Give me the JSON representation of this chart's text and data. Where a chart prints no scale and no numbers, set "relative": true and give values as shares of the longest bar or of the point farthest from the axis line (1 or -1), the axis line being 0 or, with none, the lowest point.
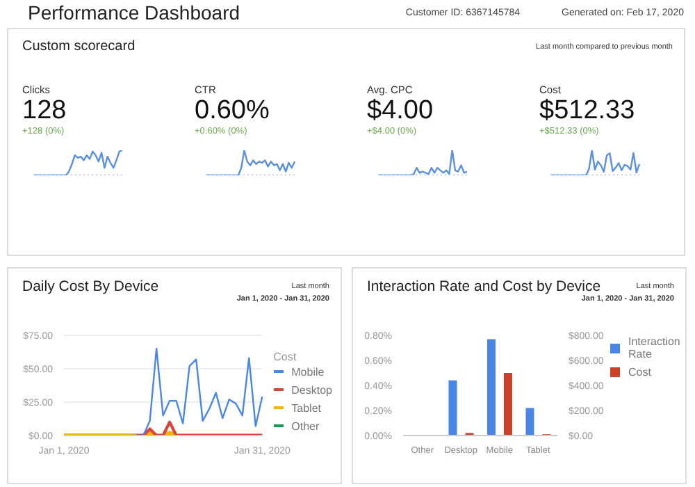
{
  "chart_data": [
    {
      "type": "other",
      "title": "Performance Dashboard",
      "annotations": [
        "Customer ID: 6367145784",
        "Generated on: Feb 17, 2020"
      ]
    },
    {
      "type": "other",
      "title": "Custom scorecard",
      "annotations": [
        "Last month compared to previous month"
      ]
    },
    {
      "type": "line",
      "title": "Clicks",
      "subtitle": "128",
      "annotations": [
        "+128 (0%)"
      ],
      "relative": true,
      "tick_labels": false,
      "categories": [
        null,
        null,
        null,
        null,
        null,
        null,
        null,
        null,
        null,
        null,
        null,
        null,
        null,
        null,
        null,
        null,
        null,
        null,
        null,
        null,
        null,
        null,
        null,
        null,
        null,
        null,
        null,
        null,
        null,
        null,
        null
      ],
      "series": [
        {
          "color": "#a4c2f4",
          "line_style": "dotted",
          "values": [
            0,
            0,
            0,
            0,
            0,
            0,
            0,
            0,
            0,
            0,
            0,
            0,
            0,
            0,
            0,
            0,
            0,
            0,
            0,
            0,
            0,
            0,
            0,
            0,
            0,
            0,
            0,
            0,
            0,
            0,
            0
          ]
        },
        {
          "color": "#5b8fe0",
          "values": [
            0,
            0,
            0,
            0,
            0,
            0,
            0,
            0,
            0,
            0,
            0,
            0,
            0.15,
            0.45,
            0.8,
            0.7,
            0.75,
            0.6,
            0.8,
            0.65,
            0.95,
            0.8,
            0.55,
            0.9,
            0.3,
            0.75,
            0.5,
            0.3,
            0.6,
            0.95,
            1
          ]
        }
      ]
    },
    {
      "type": "line",
      "title": "CTR",
      "subtitle": "0.60%",
      "annotations": [
        "+0.60% (0%)"
      ],
      "relative": true,
      "tick_labels": false,
      "categories": [
        null,
        null,
        null,
        null,
        null,
        null,
        null,
        null,
        null,
        null,
        null,
        null,
        null,
        null,
        null,
        null,
        null,
        null,
        null,
        null,
        null,
        null,
        null,
        null,
        null,
        null,
        null,
        null,
        null,
        null,
        null
      ],
      "series": [
        {
          "color": "#a4c2f4",
          "line_style": "dotted",
          "values": [
            0,
            0,
            0,
            0,
            0,
            0,
            0,
            0,
            0,
            0,
            0,
            0,
            0,
            0,
            0,
            0,
            0,
            0,
            0,
            0,
            0,
            0,
            0,
            0,
            0,
            0,
            0,
            0,
            0,
            0,
            0
          ]
        },
        {
          "color": "#5b8fe0",
          "values": [
            0,
            0,
            0,
            0,
            0,
            0,
            0,
            0,
            0,
            0,
            0,
            0,
            0.3,
            1,
            0.55,
            0.4,
            0.6,
            0.45,
            0.55,
            0.5,
            0.6,
            0.35,
            0.55,
            0.4,
            0.45,
            0.2,
            0.45,
            0.15,
            0.5,
            0.3,
            0.55
          ]
        }
      ]
    },
    {
      "type": "line",
      "title": "Avg. CPC",
      "subtitle": "$4.00",
      "annotations": [
        "+$4.00 (0%)"
      ],
      "relative": true,
      "tick_labels": false,
      "categories": [
        null,
        null,
        null,
        null,
        null,
        null,
        null,
        null,
        null,
        null,
        null,
        null,
        null,
        null,
        null,
        null,
        null,
        null,
        null,
        null,
        null,
        null,
        null,
        null,
        null,
        null,
        null,
        null,
        null,
        null,
        null
      ],
      "series": [
        {
          "color": "#a4c2f4",
          "line_style": "dotted",
          "values": [
            0,
            0,
            0,
            0,
            0,
            0,
            0,
            0,
            0,
            0,
            0,
            0,
            0,
            0,
            0,
            0,
            0,
            0,
            0,
            0,
            0,
            0,
            0,
            0,
            0,
            0,
            0,
            0,
            0,
            0,
            0
          ]
        },
        {
          "color": "#5b8fe0",
          "values": [
            0,
            0,
            0,
            0,
            0,
            0,
            0,
            0,
            0,
            0,
            0,
            0,
            0.05,
            0.3,
            0.1,
            0.15,
            0.1,
            0.05,
            0.3,
            0.1,
            0.3,
            0.2,
            0.1,
            0.2,
            0.05,
            1,
            0.2,
            0.15,
            0.4,
            0.1,
            0.15
          ]
        }
      ]
    },
    {
      "type": "line",
      "title": "Cost",
      "subtitle": "$512.33",
      "annotations": [
        "+$512.33 (0%)"
      ],
      "relative": true,
      "tick_labels": false,
      "categories": [
        null,
        null,
        null,
        null,
        null,
        null,
        null,
        null,
        null,
        null,
        null,
        null,
        null,
        null,
        null,
        null,
        null,
        null,
        null,
        null,
        null,
        null,
        null,
        null,
        null,
        null,
        null,
        null,
        null,
        null,
        null
      ],
      "series": [
        {
          "color": "#a4c2f4",
          "line_style": "dotted",
          "values": [
            0,
            0,
            0,
            0,
            0,
            0,
            0,
            0,
            0,
            0,
            0,
            0,
            0,
            0,
            0,
            0,
            0,
            0,
            0,
            0,
            0,
            0,
            0,
            0,
            0,
            0,
            0,
            0,
            0,
            0,
            0
          ]
        },
        {
          "color": "#5b8fe0",
          "values": [
            0,
            0,
            0,
            0,
            0,
            0,
            0,
            0,
            0,
            0,
            0,
            0,
            0,
            0.25,
            1,
            0.23,
            0.55,
            0.4,
            0.14,
            0.8,
            0.88,
            0.17,
            0.31,
            0.49,
            0.2,
            0.42,
            0.37,
            0.23,
            0.89,
            0.11,
            0.45
          ]
        }
      ]
    },
    {
      "type": "line",
      "title": "Daily Cost By Device",
      "annotations": [
        "Last month",
        "Jan 1, 2020 - Jan 31, 2020"
      ],
      "legend_title": "Cost",
      "legend": "right",
      "grid": "y",
      "ylim": [
        0,
        75
      ],
      "yticks": [
        {
          "value": 0,
          "label": "$0.00"
        },
        {
          "value": 25,
          "label": "$25.00"
        },
        {
          "value": 50,
          "label": "$50.00"
        },
        {
          "value": 75,
          "label": "$75.00"
        }
      ],
      "categories": [
        "Jan 1, 2020",
        null,
        null,
        null,
        null,
        null,
        null,
        null,
        null,
        null,
        null,
        null,
        null,
        null,
        null,
        null,
        null,
        null,
        null,
        null,
        null,
        null,
        null,
        null,
        null,
        null,
        null,
        null,
        null,
        null,
        "Jan 31, 2020"
      ],
      "series": [
        {
          "name": "Mobile",
          "color": "#4a86e8",
          "values": [
            null,
            null,
            null,
            null,
            null,
            null,
            null,
            null,
            null,
            null,
            0,
            0,
            0,
            11,
            65,
            15,
            26,
            26,
            9,
            52,
            57,
            11,
            20,
            32,
            13,
            27,
            24,
            15,
            58,
            7,
            29
          ]
        },
        {
          "name": "Desktop",
          "color": "#db4437",
          "values": [
            null,
            null,
            null,
            null,
            null,
            null,
            null,
            null,
            null,
            null,
            null,
            0,
            0,
            5,
            0,
            0,
            10,
            0,
            0,
            0,
            0,
            0,
            0,
            0,
            0,
            0,
            0,
            0,
            0,
            0,
            0
          ]
        },
        {
          "name": "Tablet",
          "color": "#f4b400",
          "values": [
            0,
            0,
            0,
            0,
            0,
            0,
            0,
            0,
            0,
            0,
            0,
            0,
            0,
            2,
            0,
            0,
            2,
            0,
            0,
            0,
            0,
            0,
            0,
            0,
            0,
            0,
            0,
            0,
            0,
            0,
            0
          ]
        },
        {
          "name": "Other",
          "color": "#0f9d58",
          "values": [
            null,
            null,
            null,
            null,
            null,
            null,
            null,
            null,
            null,
            null,
            null,
            null,
            null,
            null,
            null,
            null,
            null,
            null,
            null,
            null,
            null,
            null,
            null,
            null,
            null,
            null,
            null,
            null,
            null,
            null,
            null
          ]
        }
      ]
    },
    {
      "type": "bar",
      "title": "Interaction Rate and Cost by Device",
      "annotations": [
        "Last month",
        "Jan 1, 2020 - Jan 31, 2020"
      ],
      "legend": "top right",
      "categories": [
        "Other",
        "Desktop",
        "Mobile",
        "Tablet"
      ],
      "ylim": [
        0,
        0.8
      ],
      "yticks": [
        {
          "value": 0,
          "label": "0.00%"
        },
        {
          "value": 0.2,
          "label": "0.20%"
        },
        {
          "value": 0.4,
          "label": "0.40%"
        },
        {
          "value": 0.6,
          "label": "0.60%"
        },
        {
          "value": 0.8,
          "label": "0.80%"
        }
      ],
      "y2lim": [
        0,
        800
      ],
      "y2ticks": [
        {
          "value": 0,
          "label": "$0.00"
        },
        {
          "value": 200,
          "label": "$200.00"
        },
        {
          "value": 400,
          "label": "$400.00"
        },
        {
          "value": 600,
          "label": "$600.00"
        },
        {
          "value": 800,
          "label": "$800.00"
        }
      ],
      "series": [
        {
          "name": "Interaction Rate",
          "color": "#4a86e8",
          "values": [
            0,
            0.44,
            0.77,
            0.22
          ]
        },
        {
          "name": "Cost",
          "color": "#cc4125",
          "axis": "y2",
          "values": [
            0,
            20,
            500,
            10
          ]
        }
      ]
    }
  ]
}
